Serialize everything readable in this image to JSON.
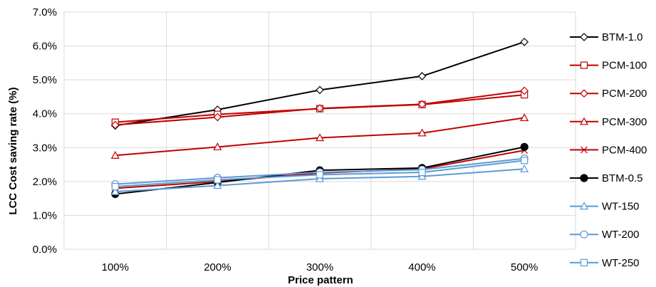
{
  "chart_data": {
    "type": "line",
    "title": "",
    "xlabel": "Price pattern",
    "ylabel": "LCC Cost saving rate (%)",
    "categories": [
      "100%",
      "200%",
      "300%",
      "400%",
      "500%"
    ],
    "ylim": [
      0,
      7
    ],
    "yticks": [
      "0.0%",
      "1.0%",
      "2.0%",
      "3.0%",
      "4.0%",
      "5.0%",
      "6.0%",
      "7.0%"
    ],
    "grid": true,
    "legend_position": "right",
    "series": [
      {
        "name": "BTM-1.0",
        "color": "#000000",
        "marker": "diamond",
        "filled": false,
        "values": [
          3.65,
          4.12,
          4.7,
          5.11,
          6.12
        ]
      },
      {
        "name": "PCM-100",
        "color": "#c00000",
        "marker": "square",
        "filled": false,
        "values": [
          3.75,
          3.98,
          4.15,
          4.27,
          4.56
        ]
      },
      {
        "name": "PCM-200",
        "color": "#c00000",
        "marker": "diamond",
        "filled": false,
        "values": [
          3.67,
          3.9,
          4.16,
          4.28,
          4.68
        ]
      },
      {
        "name": "PCM-300",
        "color": "#c00000",
        "marker": "triangle",
        "filled": false,
        "values": [
          2.77,
          3.02,
          3.29,
          3.43,
          3.88
        ]
      },
      {
        "name": "PCM-400",
        "color": "#c00000",
        "marker": "x",
        "filled": false,
        "values": [
          1.8,
          2.0,
          2.25,
          2.37,
          2.92
        ]
      },
      {
        "name": "BTM-0.5",
        "color": "#000000",
        "marker": "circle",
        "filled": true,
        "values": [
          1.63,
          1.97,
          2.33,
          2.4,
          3.02
        ]
      },
      {
        "name": "WT-150",
        "color": "#5b9bd5",
        "marker": "triangle",
        "filled": false,
        "values": [
          1.7,
          1.88,
          2.08,
          2.15,
          2.37
        ]
      },
      {
        "name": "WT-200",
        "color": "#5b9bd5",
        "marker": "circle",
        "filled": false,
        "values": [
          1.92,
          2.11,
          2.27,
          2.35,
          2.68
        ]
      },
      {
        "name": "WT-250",
        "color": "#5b9bd5",
        "marker": "square",
        "filled": false,
        "values": [
          1.85,
          2.05,
          2.2,
          2.27,
          2.62
        ]
      }
    ]
  }
}
